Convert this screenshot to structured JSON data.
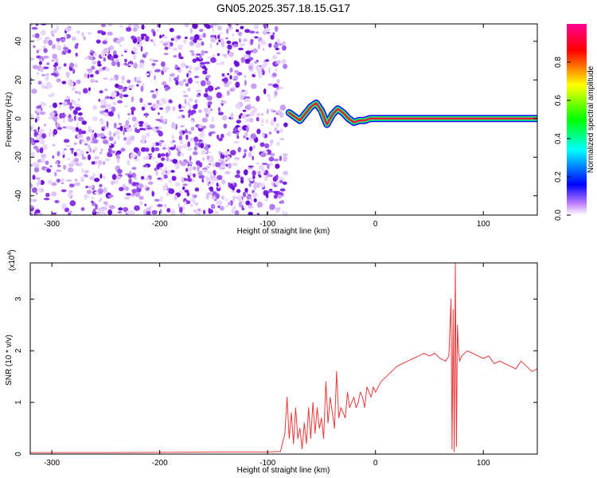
{
  "title": "GN05.2025.357.18.15.G17",
  "chart_data": [
    {
      "type": "heatmap",
      "xlabel": "Height of straight line (km)",
      "ylabel": "Frequency (Hz)",
      "xlim": [
        -320,
        150
      ],
      "ylim": [
        -50,
        49
      ],
      "xticks": [
        -300,
        -200,
        -100,
        0,
        100
      ],
      "yticks": [
        -40,
        -20,
        0,
        20,
        40
      ],
      "colorbar": {
        "label": "Normalized spectral amplitude",
        "range": [
          0,
          1
        ],
        "ticks": [
          0.0,
          0.2,
          0.4,
          0.6,
          0.8
        ],
        "colors": [
          "#ffffff",
          "#a020f0",
          "#0000ff",
          "#00ffff",
          "#00ff00",
          "#ffff00",
          "#ff0000",
          "#ff00a0"
        ]
      },
      "noise_region_x": [
        -320,
        -83
      ],
      "signal_track": {
        "x": [
          -80,
          -70,
          -60,
          -55,
          -50,
          -45,
          -40,
          -35,
          -30,
          -25,
          -20,
          -15,
          -10,
          -5,
          0,
          20,
          40,
          60,
          65,
          70,
          100,
          150
        ],
        "y": [
          3,
          -1,
          6,
          8,
          4,
          -3,
          2,
          5,
          3,
          0,
          -2,
          -1,
          -1,
          0,
          0,
          0,
          0,
          0,
          0,
          0,
          0,
          0
        ]
      }
    },
    {
      "type": "line",
      "xlabel": "Height of straight line (km)",
      "ylabel": "SNR (10 * v/v)",
      "scale_note": "(x10",
      "scale_exp": "4",
      "scale_close": ")",
      "xlim": [
        -320,
        150
      ],
      "ylim": [
        0,
        3.7
      ],
      "xticks": [
        -300,
        -200,
        -100,
        0,
        100
      ],
      "yticks": [
        0,
        1,
        2,
        3
      ],
      "color": "#e8393a",
      "series": [
        {
          "x": [
            -320,
            -250,
            -150,
            -100,
            -88,
            -84,
            -82,
            -80,
            -78,
            -76,
            -74,
            -72,
            -70,
            -68,
            -66,
            -64,
            -62,
            -60,
            -58,
            -56,
            -54,
            -52,
            -50,
            -48,
            -46,
            -44,
            -42,
            -40,
            -38,
            -36,
            -34,
            -32,
            -30,
            -28,
            -26,
            -24,
            -22,
            -20,
            -18,
            -16,
            -14,
            -12,
            -10,
            -8,
            -6,
            -4,
            -2,
            0,
            5,
            10,
            15,
            20,
            25,
            30,
            35,
            40,
            45,
            50,
            55,
            60,
            65,
            68,
            70,
            71,
            72,
            73,
            74,
            75,
            76,
            77,
            78,
            80,
            85,
            90,
            95,
            100,
            105,
            110,
            115,
            120,
            125,
            130,
            135,
            140,
            145,
            150
          ],
          "values": [
            0.03,
            0.03,
            0.04,
            0.04,
            0.05,
            0.4,
            1.1,
            0.3,
            0.8,
            0.2,
            0.9,
            0.3,
            0.5,
            0.1,
            0.6,
            0.2,
            0.9,
            0.3,
            1.0,
            0.4,
            0.9,
            0.5,
            0.7,
            0.3,
            1.4,
            0.6,
            1.1,
            0.8,
            0.5,
            1.6,
            0.7,
            0.9,
            0.8,
            0.7,
            1.2,
            0.9,
            1.0,
            1.1,
            0.9,
            1.0,
            1.2,
            1.1,
            0.9,
            1.3,
            1.2,
            1.1,
            1.3,
            1.2,
            1.4,
            1.5,
            1.6,
            1.7,
            1.75,
            1.8,
            1.85,
            1.9,
            1.95,
            1.9,
            1.95,
            1.85,
            1.8,
            1.9,
            3.0,
            0.1,
            2.8,
            0.05,
            3.7,
            0.15,
            2.5,
            2.0,
            1.8,
            1.9,
            2.0,
            1.95,
            1.9,
            1.85,
            1.9,
            1.75,
            1.8,
            1.75,
            1.7,
            1.65,
            1.8,
            1.7,
            1.6,
            1.65
          ]
        }
      ]
    }
  ]
}
